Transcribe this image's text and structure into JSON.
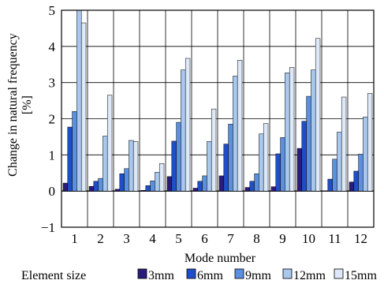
{
  "chart_data": {
    "type": "bar",
    "xlabel": "Mode number",
    "ylabel_line1": "Change in natural frequency",
    "ylabel_line2": "[%]",
    "ylim": [
      -1,
      5
    ],
    "yticks": [
      -1,
      0,
      1,
      2,
      3,
      4,
      5
    ],
    "categories": [
      "1",
      "2",
      "3",
      "4",
      "5",
      "6",
      "7",
      "8",
      "9",
      "10",
      "11",
      "12"
    ],
    "legend_title": "Element size",
    "legend_position": "bottom",
    "grid": true,
    "series": [
      {
        "name": "3mm",
        "color": "#2a1c7a",
        "values": [
          0.22,
          0.13,
          0.05,
          0.02,
          0.4,
          0.08,
          0.42,
          0.1,
          0.12,
          1.18,
          0.0,
          0.25
        ]
      },
      {
        "name": "6mm",
        "color": "#1e4fc9",
        "values": [
          1.77,
          0.27,
          0.48,
          0.15,
          1.38,
          0.27,
          1.3,
          0.27,
          1.03,
          1.93,
          0.33,
          0.55
        ]
      },
      {
        "name": "9mm",
        "color": "#5b8fe0",
        "values": [
          2.2,
          0.35,
          0.62,
          0.28,
          1.9,
          0.42,
          1.85,
          0.48,
          1.48,
          2.62,
          0.88,
          1.02
        ]
      },
      {
        "name": "12mm",
        "color": "#a8c8ee",
        "values": [
          5.0,
          1.52,
          1.4,
          0.52,
          3.35,
          1.37,
          3.18,
          1.58,
          3.27,
          3.35,
          1.63,
          2.05
        ]
      },
      {
        "name": "15mm",
        "color": "#dde9f8",
        "values": [
          4.65,
          2.65,
          1.37,
          0.76,
          3.67,
          2.27,
          3.62,
          1.87,
          3.42,
          4.22,
          2.6,
          2.7
        ]
      }
    ]
  }
}
